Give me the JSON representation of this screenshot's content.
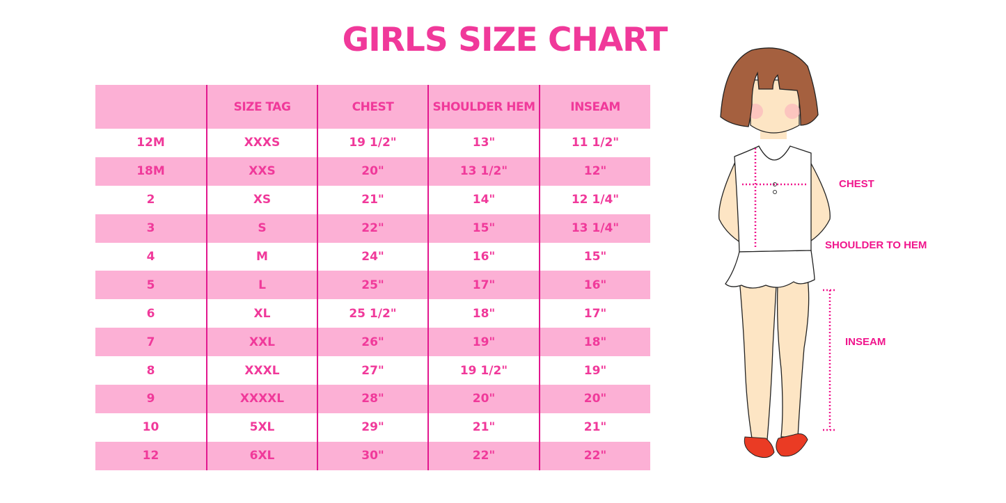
{
  "title": "GIRLS SIZE CHART",
  "table": {
    "headers": [
      "",
      "SIZE TAG",
      "CHEST",
      "SHOULDER HEM",
      "INSEAM"
    ],
    "rows": [
      [
        "12M",
        "XXXS",
        "19 1/2\"",
        "13\"",
        "11 1/2\""
      ],
      [
        "18M",
        "XXS",
        "20\"",
        "13 1/2\"",
        "12\""
      ],
      [
        "2",
        "XS",
        "21\"",
        "14\"",
        "12 1/4\""
      ],
      [
        "3",
        "S",
        "22\"",
        "15\"",
        "13 1/4\""
      ],
      [
        "4",
        "M",
        "24\"",
        "16\"",
        "15\""
      ],
      [
        "5",
        "L",
        "25\"",
        "17\"",
        "16\""
      ],
      [
        "6",
        "XL",
        "25 1/2\"",
        "18\"",
        "17\""
      ],
      [
        "7",
        "XXL",
        "26\"",
        "19\"",
        "18\""
      ],
      [
        "8",
        "XXXL",
        "27\"",
        "19 1/2\"",
        "19\""
      ],
      [
        "9",
        "XXXXL",
        "28\"",
        "20\"",
        "20\""
      ],
      [
        "10",
        "5XL",
        "29\"",
        "21\"",
        "21\""
      ],
      [
        "12",
        "6XL",
        "30\"",
        "22\"",
        "22\""
      ]
    ]
  },
  "figure": {
    "labels": {
      "chest": "CHEST",
      "shoulder_to_hem": "SHOULDER TO HEM",
      "inseam": "INSEAM"
    }
  },
  "colors": {
    "accent": "#f0399a",
    "row_pink": "#fcb0d5",
    "divider": "#e2178e",
    "hair": "#a5603f",
    "skin": "#fde5c4",
    "shoes": "#ea3b24"
  }
}
